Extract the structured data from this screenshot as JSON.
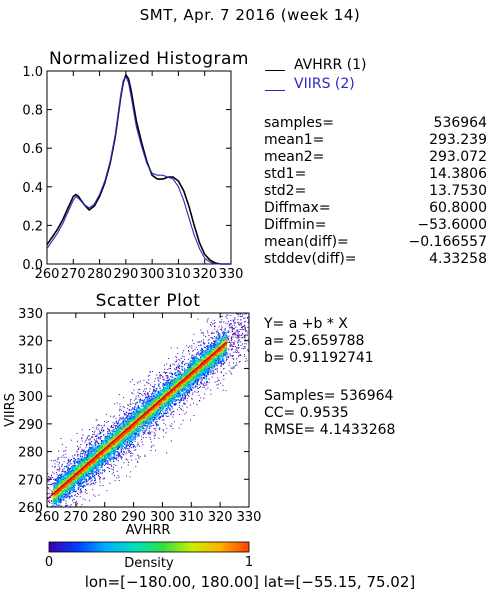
{
  "header": {
    "title": "SMT,  Apr. 7 2016 (week 14)"
  },
  "legend": [
    {
      "label": "AVHRR (1)",
      "color": "#000000"
    },
    {
      "label": "VIIRS (2)",
      "color": "#2a2ac8"
    }
  ],
  "stats": [
    {
      "label": "samples=",
      "value": "536964"
    },
    {
      "label": "mean1=",
      "value": "293.239"
    },
    {
      "label": "mean2=",
      "value": "293.072"
    },
    {
      "label": "std1=",
      "value": "14.3806"
    },
    {
      "label": "std2=",
      "value": "13.7530"
    },
    {
      "label": "Diffmax=",
      "value": "60.8000"
    },
    {
      "label": "Diffmin=",
      "value": "−53.6000"
    },
    {
      "label": "mean(diff)=",
      "value": "−0.166557"
    },
    {
      "label": "stddev(diff)=",
      "value": "4.33258"
    }
  ],
  "regression": [
    "Y= a +b * X",
    "a= 25.659788",
    "b= 0.91192741",
    "",
    "Samples= 536964",
    "CC=  0.9535",
    "RMSE= 4.1433268"
  ],
  "footer": {
    "region": "lon=[−180.00, 180.00] lat=[−55.15, 75.02]"
  },
  "chart_data": [
    {
      "type": "line",
      "title": "Normalized Histogram",
      "xlim": [
        260,
        330
      ],
      "ylim": [
        0,
        1
      ],
      "x_ticks": [
        "260",
        "270",
        "280",
        "290",
        "300",
        "310",
        "320",
        "330"
      ],
      "y_ticks": [
        "0.0",
        "0.2",
        "0.4",
        "0.6",
        "0.8",
        "1.0"
      ],
      "series": [
        {
          "name": "AVHRR (1)",
          "color": "#000000",
          "x": [
            260,
            262,
            264,
            266,
            268,
            270,
            271,
            272,
            274,
            276,
            278,
            280,
            282,
            284,
            286,
            288,
            289,
            290,
            291,
            292,
            293,
            294,
            296,
            298,
            300,
            302,
            304,
            306,
            308,
            310,
            312,
            314,
            316,
            318,
            320,
            322,
            324,
            326,
            328,
            330
          ],
          "values": [
            0.1,
            0.14,
            0.18,
            0.23,
            0.29,
            0.35,
            0.36,
            0.35,
            0.31,
            0.28,
            0.3,
            0.35,
            0.42,
            0.52,
            0.66,
            0.86,
            0.94,
            0.98,
            0.96,
            0.9,
            0.82,
            0.74,
            0.63,
            0.53,
            0.46,
            0.44,
            0.44,
            0.45,
            0.45,
            0.43,
            0.38,
            0.3,
            0.2,
            0.11,
            0.05,
            0.02,
            0.005,
            0.0,
            0.0,
            0.0
          ]
        },
        {
          "name": "VIIRS (2)",
          "color": "#2a2ac8",
          "x": [
            260,
            262,
            264,
            266,
            268,
            270,
            271,
            272,
            274,
            276,
            278,
            280,
            282,
            284,
            286,
            288,
            289,
            290,
            291,
            292,
            293,
            294,
            296,
            298,
            300,
            302,
            304,
            306,
            308,
            310,
            312,
            314,
            316,
            318,
            320,
            322,
            324,
            326,
            328,
            330
          ],
          "values": [
            0.08,
            0.12,
            0.16,
            0.21,
            0.27,
            0.33,
            0.35,
            0.34,
            0.31,
            0.29,
            0.31,
            0.36,
            0.43,
            0.53,
            0.67,
            0.87,
            0.95,
            0.97,
            0.94,
            0.87,
            0.79,
            0.71,
            0.61,
            0.52,
            0.47,
            0.46,
            0.46,
            0.45,
            0.44,
            0.4,
            0.33,
            0.24,
            0.15,
            0.08,
            0.03,
            0.01,
            0.0,
            0.0,
            0.0,
            0.0
          ]
        }
      ]
    },
    {
      "type": "heatmap",
      "title": "Scatter Plot",
      "xlabel": "AVHRR",
      "ylabel": "VIIRS",
      "xlim": [
        260,
        330
      ],
      "ylim": [
        260,
        330
      ],
      "x_ticks": [
        "260",
        "270",
        "280",
        "290",
        "300",
        "310",
        "320",
        "330"
      ],
      "y_ticks": [
        "260",
        "270",
        "280",
        "290",
        "300",
        "310",
        "320",
        "330"
      ],
      "fit_line": {
        "x": [
          260,
          322
        ],
        "y": [
          262.76,
          319.3
        ],
        "color": "#c00000"
      },
      "density_colorbar": {
        "label": "Density",
        "min_label": "0",
        "max_label": "1",
        "colors": [
          "#3a00b0",
          "#0040ff",
          "#00b0ff",
          "#00e0c0",
          "#30e040",
          "#c8f000",
          "#ffb000",
          "#ff4000"
        ]
      }
    }
  ]
}
